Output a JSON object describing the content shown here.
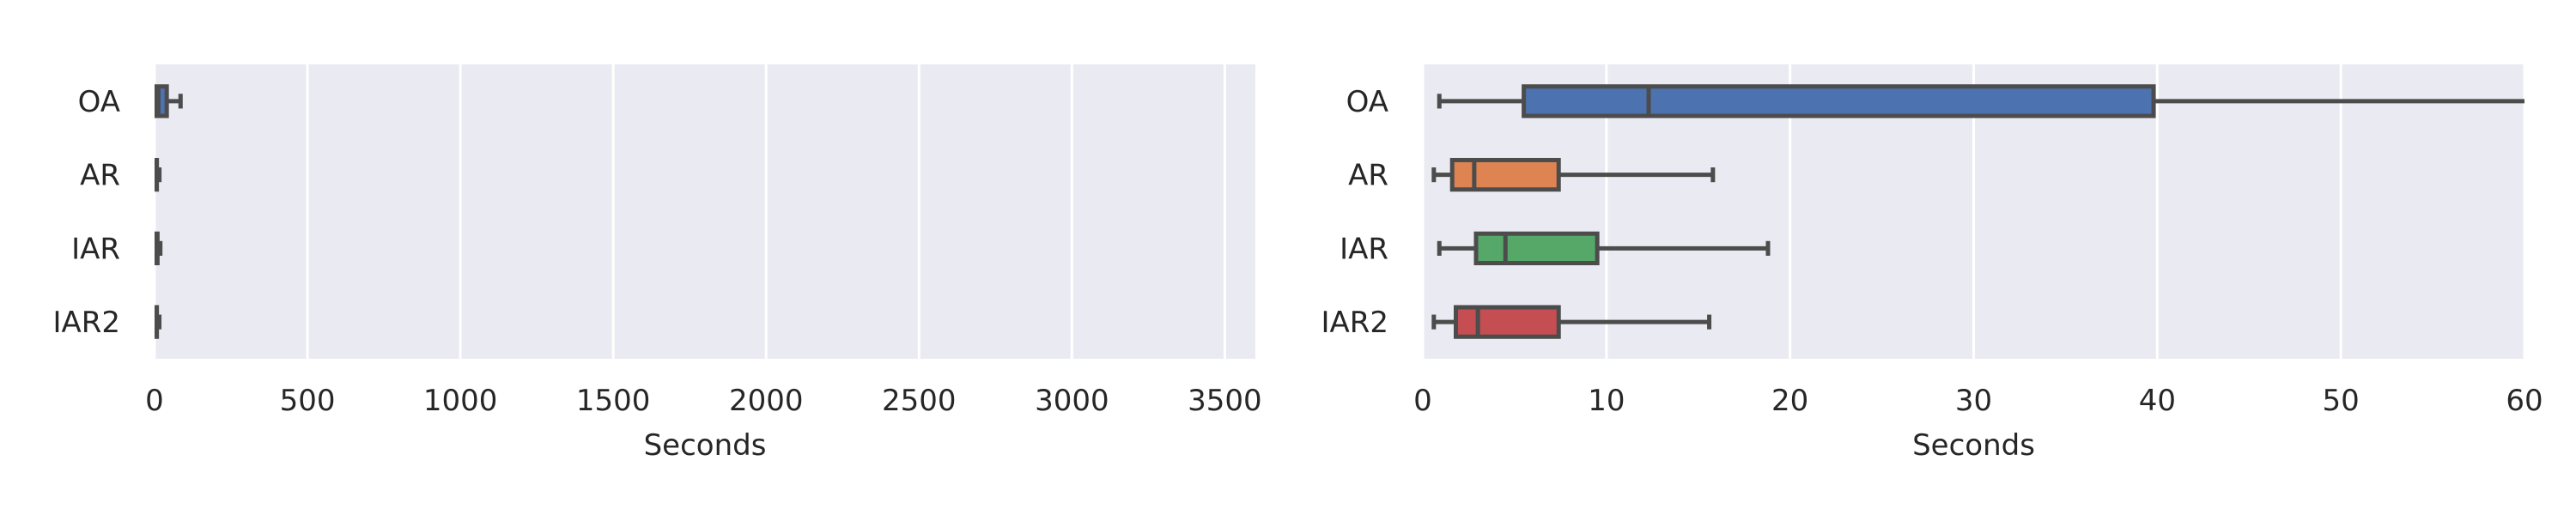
{
  "chart_data": [
    {
      "type": "boxplot",
      "orientation": "horizontal",
      "categories": [
        "OA",
        "AR",
        "IAR",
        "IAR2"
      ],
      "xlabel": "Seconds",
      "xlim": [
        0,
        3600
      ],
      "xticks": [
        0,
        500,
        1000,
        1500,
        2000,
        2500,
        3000,
        3500
      ],
      "grid": true,
      "boxes": [
        {
          "category": "OA",
          "whislo": 0.9,
          "q1": 5.5,
          "med": 12.3,
          "q3": 39.8,
          "whishi": 85,
          "color": "#4C72B0"
        },
        {
          "category": "AR",
          "whislo": 0.6,
          "q1": 1.6,
          "med": 2.8,
          "q3": 7.4,
          "whishi": 15.8,
          "color": "#DD8452"
        },
        {
          "category": "IAR",
          "whislo": 0.9,
          "q1": 2.9,
          "med": 4.5,
          "q3": 9.5,
          "whishi": 18.8,
          "color": "#55A868"
        },
        {
          "category": "IAR2",
          "whislo": 0.6,
          "q1": 1.8,
          "med": 3.0,
          "q3": 7.4,
          "whishi": 15.6,
          "color": "#C44E52"
        }
      ]
    },
    {
      "type": "boxplot",
      "orientation": "horizontal",
      "categories": [
        "OA",
        "AR",
        "IAR",
        "IAR2"
      ],
      "xlabel": "Seconds",
      "xlim": [
        0,
        60
      ],
      "xticks": [
        0,
        10,
        20,
        30,
        40,
        50,
        60
      ],
      "grid": true,
      "boxes": [
        {
          "category": "OA",
          "whislo": 0.9,
          "q1": 5.5,
          "med": 12.3,
          "q3": 39.8,
          "whishi": 85,
          "color": "#4C72B0"
        },
        {
          "category": "AR",
          "whislo": 0.6,
          "q1": 1.6,
          "med": 2.8,
          "q3": 7.4,
          "whishi": 15.8,
          "color": "#DD8452"
        },
        {
          "category": "IAR",
          "whislo": 0.9,
          "q1": 2.9,
          "med": 4.5,
          "q3": 9.5,
          "whishi": 18.8,
          "color": "#55A868"
        },
        {
          "category": "IAR2",
          "whislo": 0.6,
          "q1": 1.8,
          "med": 3.0,
          "q3": 7.4,
          "whishi": 15.6,
          "color": "#C44E52"
        }
      ]
    }
  ],
  "style": {
    "plot_background": "#EAEAF2",
    "grid_color": "#FFFFFF",
    "line_color": "#4C4C4C",
    "text_color": "#262626"
  }
}
